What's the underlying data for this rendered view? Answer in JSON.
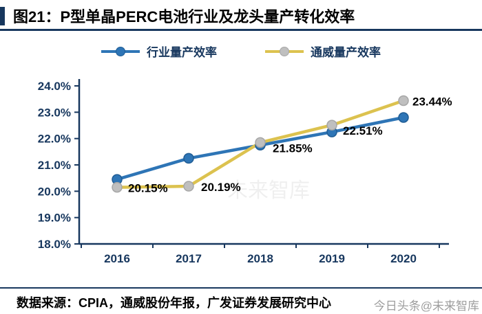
{
  "header": {
    "title": "图21：P型单晶PERC电池行业及龙头量产转化效率"
  },
  "legend": [
    {
      "label": "行业量产效率",
      "line_color": "#2E75B6",
      "marker_color": "#2E75B6",
      "marker_border": "#1F5C94"
    },
    {
      "label": "通威量产效率",
      "line_color": "#DCC24F",
      "marker_color": "#BFBFBF",
      "marker_border": "#A6A6A6"
    }
  ],
  "chart_data": {
    "type": "line",
    "title": "图21：P型单晶PERC电池行业及龙头量产转化效率",
    "categories": [
      "2016",
      "2017",
      "2018",
      "2019",
      "2020"
    ],
    "series": [
      {
        "name": "行业量产效率",
        "color": "#2E75B6",
        "marker_color": "#2E75B6",
        "marker_stroke": "#1F5C94",
        "values": [
          20.45,
          21.25,
          21.75,
          22.25,
          22.8
        ],
        "labels": null
      },
      {
        "name": "通威量产效率",
        "color": "#DCC24F",
        "marker_color": "#BFBFBF",
        "marker_stroke": "#A6A6A6",
        "values": [
          20.15,
          20.19,
          21.85,
          22.51,
          23.44
        ],
        "labels": [
          "20.15%",
          "20.19%",
          "21.85%",
          "22.51%",
          "23.44%"
        ],
        "label_offsets": [
          [
            16,
            7
          ],
          [
            18,
            7
          ],
          [
            18,
            14
          ],
          [
            16,
            14
          ],
          [
            13,
            7
          ]
        ]
      }
    ],
    "ylim": [
      18,
      24
    ],
    "ytick_step": 1,
    "ytick_labels": [
      "18.0%",
      "19.0%",
      "20.0%",
      "21.0%",
      "22.0%",
      "23.0%",
      "24.0%"
    ],
    "xlabel": "",
    "ylabel": "",
    "grid": false,
    "legend_position": "top"
  },
  "footer": {
    "source": "数据来源：CPIA，通威股份年报，广发证券发展研究中心",
    "watermark_bottom_right": "今日头条@未来智库",
    "watermark_center": "未来智库"
  },
  "colors": {
    "accent": "#17375E",
    "axis": "#17375E",
    "industry_line": "#2E75B6",
    "tongwei_line": "#DCC24F",
    "tongwei_marker": "#BFBFBF",
    "data_label": "#000000",
    "title_text": "#000000"
  }
}
